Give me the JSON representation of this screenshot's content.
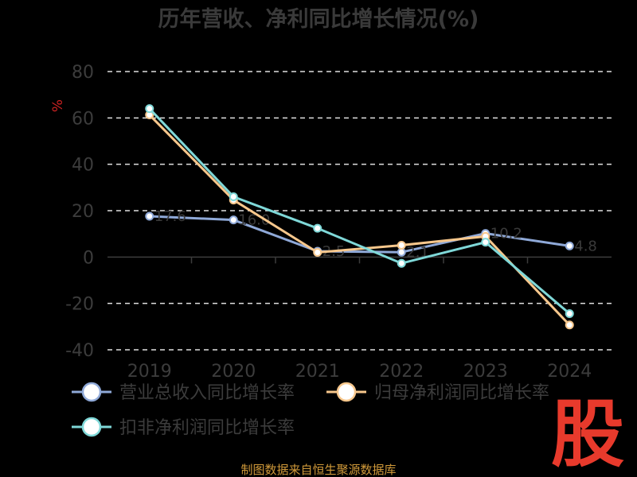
{
  "chart_data": {
    "type": "line",
    "title": "历年营收、净利同比增长情况(%)",
    "unit_label": "%",
    "x": [
      "2019",
      "2020",
      "2021",
      "2022",
      "2023",
      "2024"
    ],
    "y_ticks": [
      "80",
      "60",
      "40",
      "20",
      "0",
      "-20",
      "-40"
    ],
    "ylim": [
      -40,
      80
    ],
    "grid": true,
    "legend_position": "bottom",
    "series": [
      {
        "name": "营业总收入同比增长率",
        "color": "#8fa9d8",
        "values": [
          17.6,
          16.0,
          2.5,
          2.1,
          10.2,
          4.8
        ],
        "labels": [
          "17.6",
          "16.0",
          "2.5",
          "2.1",
          "10.2",
          "4.8"
        ]
      },
      {
        "name": "归母净利润同比增长率",
        "color": "#f7c78c",
        "values": [
          61.3,
          24.6,
          2.0,
          5.1,
          8.9,
          -29.3
        ],
        "labels": [
          "",
          "",
          "",
          "",
          "",
          ""
        ]
      },
      {
        "name": "扣非净利润同比增长率",
        "color": "#7fd8d8",
        "values": [
          64.0,
          26.0,
          12.4,
          -2.7,
          6.4,
          -24.4
        ],
        "labels": [
          "",
          "",
          "",
          "",
          "",
          ""
        ]
      }
    ]
  },
  "footer": {
    "source": "制图数据来自恒生聚源数据库",
    "logo": "股"
  }
}
